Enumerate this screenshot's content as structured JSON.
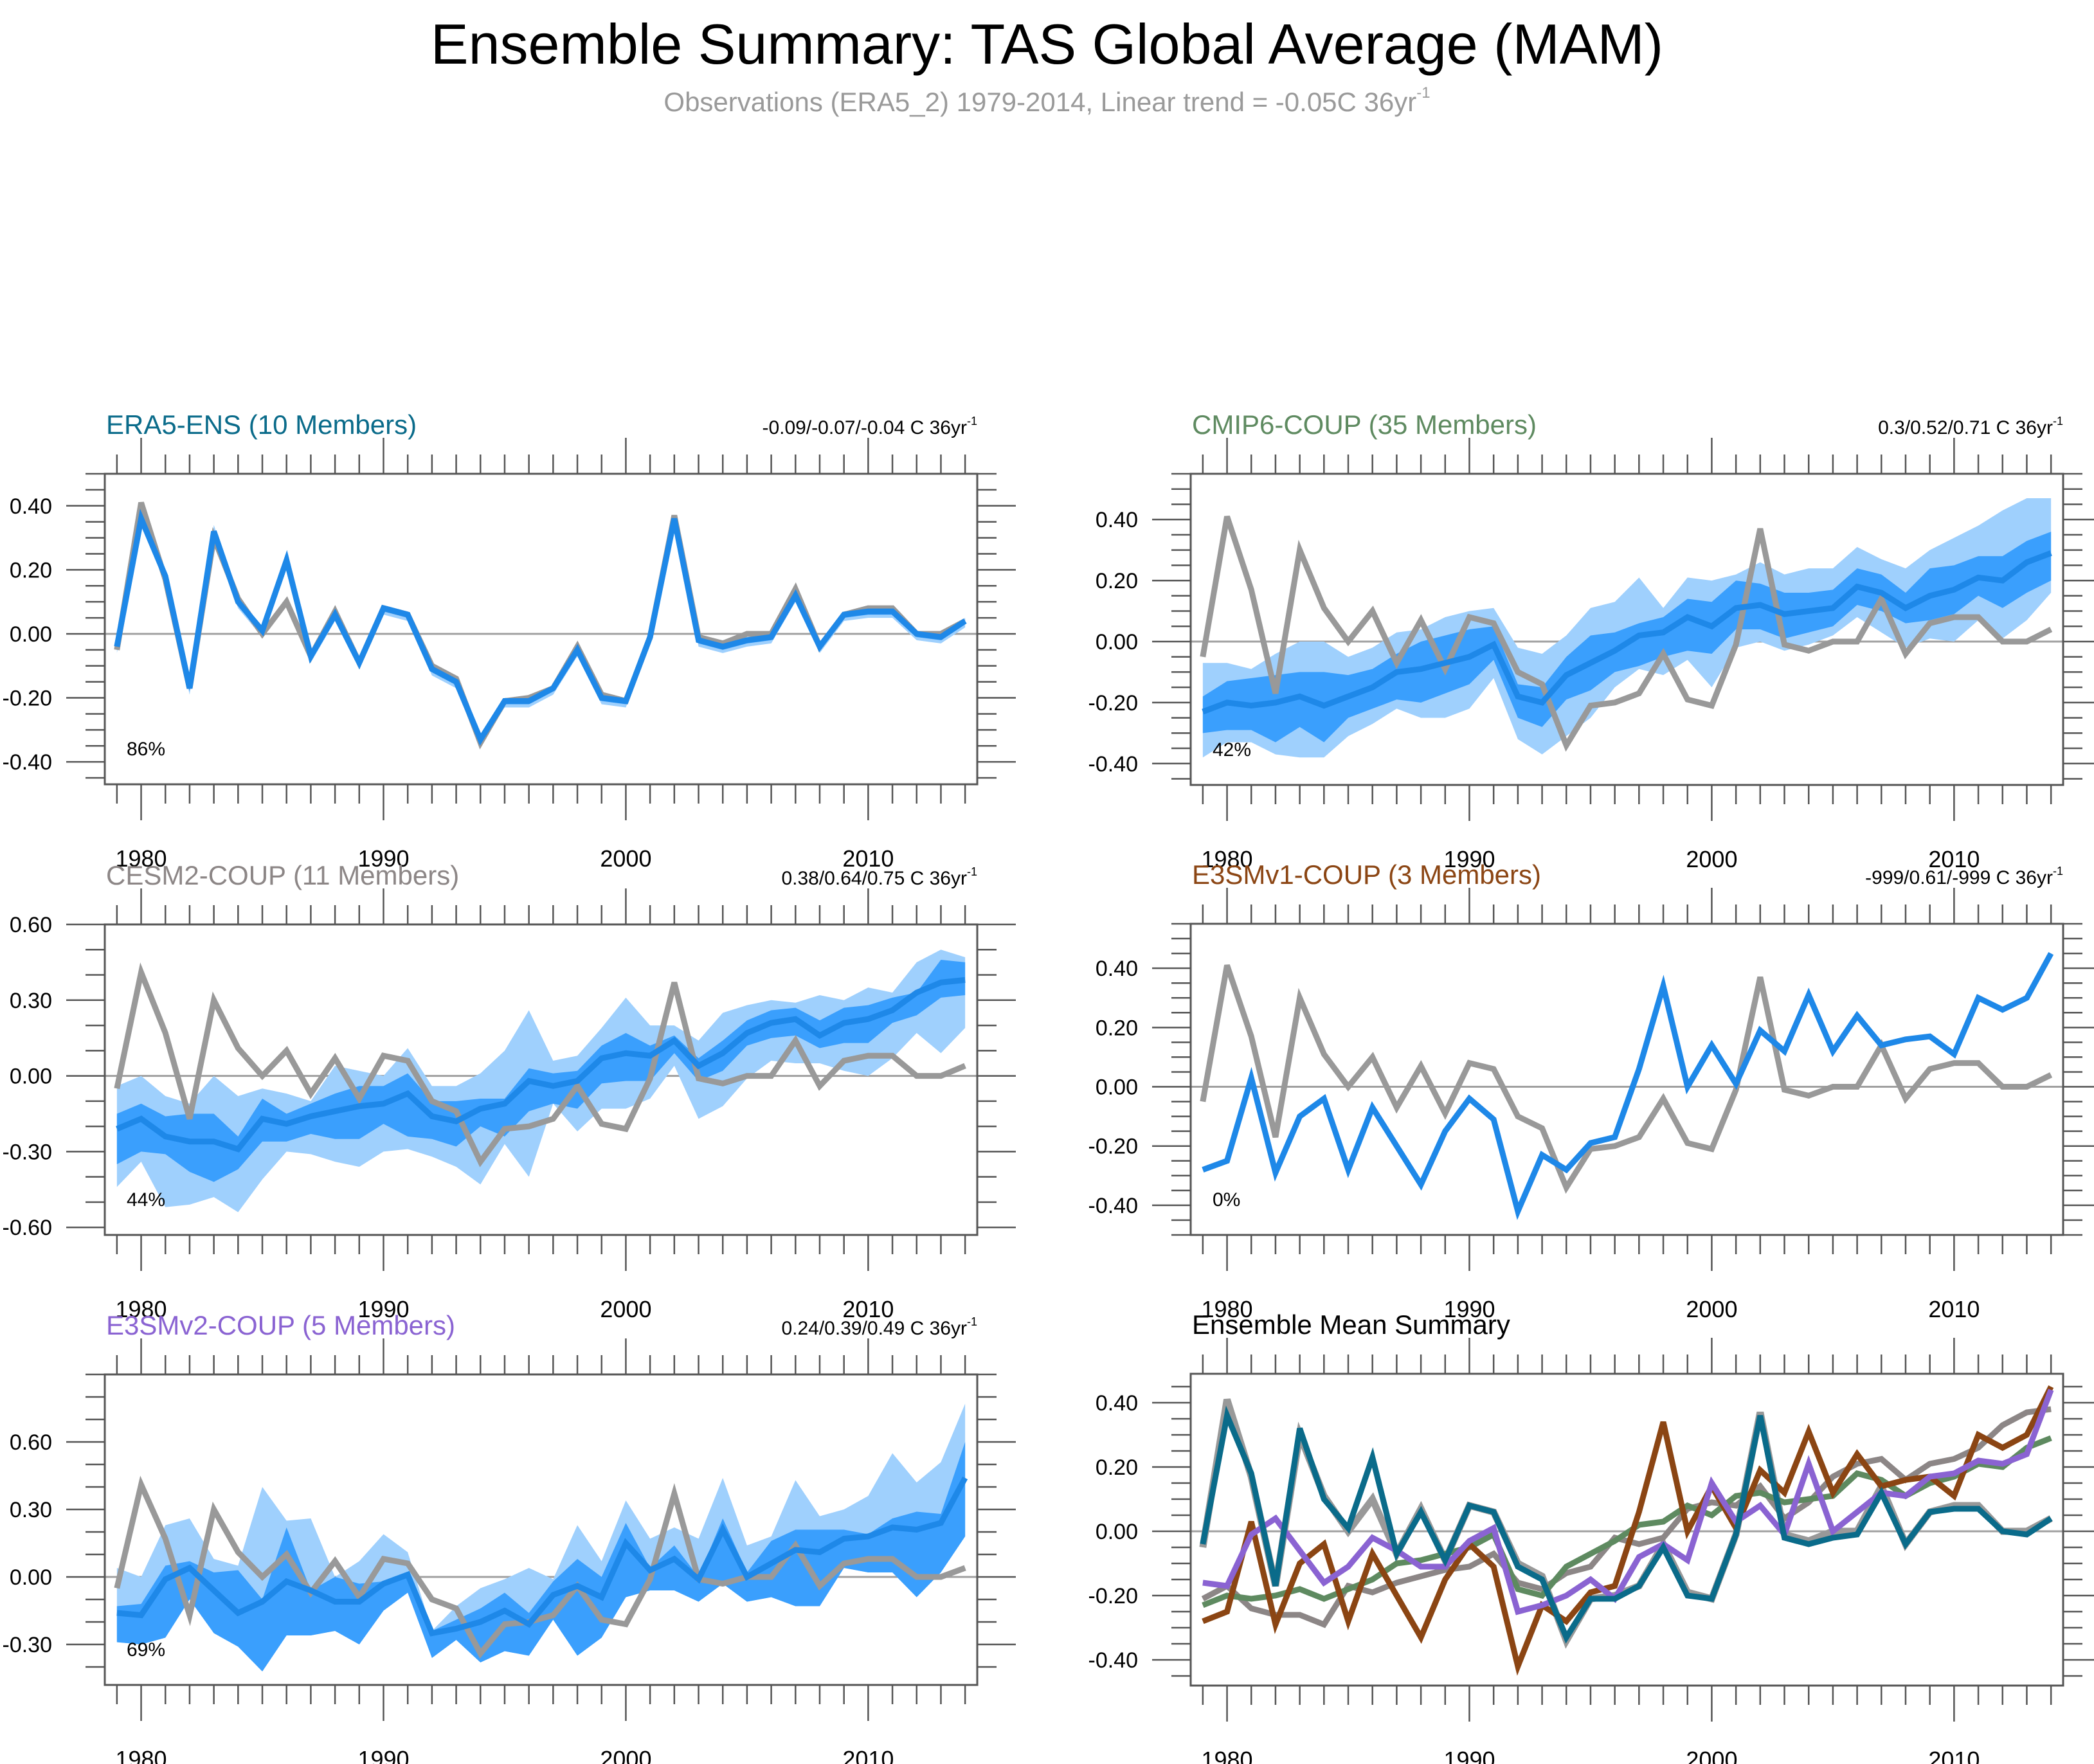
{
  "header": {
    "title": "Ensemble Summary: TAS Global Average (MAM)",
    "subtitle": "Observations (ERA5_2) 1979-2014, Linear trend = -0.05C 36yr",
    "subtitle_sup": "-1"
  },
  "colors": {
    "obs": "#999999",
    "mean_line": "#1e88e8",
    "band_light": "#9fd0fd",
    "band_dark": "#3a9ffd",
    "zero_line": "#a0a0a0",
    "axis": "#555555",
    "era5": "#0a6b8a",
    "cmip6": "#5e8a60",
    "cesm2": "#8c8686",
    "e3smv1": "#8b4513",
    "e3smv2": "#8a63d2"
  },
  "years": [
    1979,
    1980,
    1981,
    1982,
    1983,
    1984,
    1985,
    1986,
    1987,
    1988,
    1989,
    1990,
    1991,
    1992,
    1993,
    1994,
    1995,
    1996,
    1997,
    1998,
    1999,
    2000,
    2001,
    2002,
    2003,
    2004,
    2005,
    2006,
    2007,
    2008,
    2009,
    2010,
    2011,
    2012,
    2013,
    2014
  ],
  "observed": {
    "name": "Observations (ERA5_2)",
    "values": [
      -0.05,
      0.41,
      0.17,
      -0.17,
      0.3,
      0.11,
      0.0,
      0.1,
      -0.07,
      0.07,
      -0.09,
      0.08,
      0.06,
      -0.1,
      -0.14,
      -0.34,
      -0.21,
      -0.2,
      -0.17,
      -0.04,
      -0.19,
      -0.21,
      -0.01,
      0.37,
      -0.01,
      -0.03,
      0.0,
      0.0,
      0.14,
      -0.04,
      0.06,
      0.08,
      0.08,
      0.0,
      0.0,
      0.04
    ]
  },
  "chart_data": [
    {
      "type": "line",
      "id": "era5",
      "title": "ERA5-ENS (10 Members)",
      "title_color": "#0a6b8a",
      "trend": "-0.09/-0.07/-0.04 C 36yr",
      "trend_sup": "-1",
      "pct_label": "86%",
      "xlim": [
        1978.5,
        2014.5
      ],
      "xticks": [
        "1980",
        "1990",
        "2000",
        "2010"
      ],
      "xtick_values": [
        1980,
        1990,
        2000,
        2010
      ],
      "ylim": [
        -0.47,
        0.5
      ],
      "yticks": [
        "0.40",
        "0.20",
        "0.00",
        "-0.20",
        "-0.40"
      ],
      "ytick_values": [
        0.4,
        0.2,
        0.0,
        -0.2,
        -0.4
      ],
      "yminor_step": 0.05,
      "mean": [
        -0.04,
        0.36,
        0.18,
        -0.17,
        0.32,
        0.1,
        0.01,
        0.23,
        -0.07,
        0.06,
        -0.09,
        0.08,
        0.06,
        -0.11,
        -0.15,
        -0.33,
        -0.21,
        -0.21,
        -0.17,
        -0.05,
        -0.2,
        -0.21,
        -0.01,
        0.36,
        -0.02,
        -0.04,
        -0.02,
        -0.01,
        0.12,
        -0.04,
        0.06,
        0.07,
        0.07,
        0.0,
        -0.01,
        0.04
      ],
      "band_outer": {
        "lower": [
          -0.06,
          0.34,
          0.16,
          -0.19,
          0.3,
          0.08,
          -0.01,
          0.21,
          -0.09,
          0.04,
          -0.11,
          0.06,
          0.04,
          -0.13,
          -0.17,
          -0.35,
          -0.23,
          -0.23,
          -0.19,
          -0.07,
          -0.22,
          -0.23,
          -0.03,
          0.34,
          -0.04,
          -0.06,
          -0.04,
          -0.03,
          0.1,
          -0.06,
          0.04,
          0.05,
          0.05,
          -0.02,
          -0.03,
          0.02
        ],
        "upper": [
          -0.03,
          0.38,
          0.2,
          -0.16,
          0.34,
          0.11,
          0.02,
          0.24,
          -0.06,
          0.07,
          -0.08,
          0.09,
          0.07,
          -0.1,
          -0.14,
          -0.32,
          -0.2,
          -0.2,
          -0.16,
          -0.04,
          -0.19,
          -0.2,
          0.0,
          0.37,
          -0.01,
          -0.02,
          -0.01,
          0.0,
          0.13,
          -0.03,
          0.07,
          0.08,
          0.08,
          0.01,
          0.0,
          0.05
        ]
      },
      "band_inner": {
        "lower": [
          -0.05,
          0.35,
          0.17,
          -0.18,
          0.31,
          0.09,
          0.0,
          0.22,
          -0.08,
          0.05,
          -0.1,
          0.07,
          0.05,
          -0.12,
          -0.16,
          -0.34,
          -0.22,
          -0.22,
          -0.18,
          -0.06,
          -0.21,
          -0.22,
          -0.02,
          0.35,
          -0.03,
          -0.05,
          -0.03,
          -0.02,
          0.11,
          -0.05,
          0.05,
          0.06,
          0.06,
          -0.01,
          -0.02,
          0.03
        ],
        "upper": [
          -0.035,
          0.365,
          0.185,
          -0.165,
          0.325,
          0.105,
          0.015,
          0.235,
          -0.065,
          0.065,
          -0.085,
          0.085,
          0.065,
          -0.105,
          -0.145,
          -0.325,
          -0.205,
          -0.205,
          -0.165,
          -0.045,
          -0.195,
          -0.205,
          -0.005,
          0.365,
          -0.015,
          -0.035,
          -0.015,
          -0.005,
          0.125,
          -0.035,
          0.065,
          0.075,
          0.075,
          0.005,
          -0.005,
          0.045
        ]
      }
    },
    {
      "type": "line",
      "id": "cmip6",
      "title": "CMIP6-COUP (35 Members)",
      "title_color": "#5e8a60",
      "trend": "0.3/0.52/0.71 C 36yr",
      "trend_sup": "-1",
      "pct_label": "42%",
      "xlim": [
        1978.5,
        2014.5
      ],
      "xticks": [
        "1980",
        "1990",
        "2000",
        "2010"
      ],
      "xtick_values": [
        1980,
        1990,
        2000,
        2010
      ],
      "ylim": [
        -0.47,
        0.55
      ],
      "yticks": [
        "0.40",
        "0.20",
        "0.00",
        "-0.20",
        "-0.40"
      ],
      "ytick_values": [
        0.4,
        0.2,
        0.0,
        -0.2,
        -0.4
      ],
      "yminor_step": 0.05,
      "mean": [
        -0.23,
        -0.2,
        -0.21,
        -0.2,
        -0.18,
        -0.21,
        -0.18,
        -0.15,
        -0.1,
        -0.09,
        -0.07,
        -0.05,
        -0.01,
        -0.18,
        -0.2,
        -0.11,
        -0.07,
        -0.03,
        0.02,
        0.03,
        0.08,
        0.05,
        0.11,
        0.12,
        0.09,
        0.1,
        0.11,
        0.18,
        0.16,
        0.11,
        0.15,
        0.17,
        0.21,
        0.2,
        0.26,
        0.29
      ],
      "band_outer": {
        "lower": [
          -0.38,
          -0.33,
          -0.33,
          -0.37,
          -0.38,
          -0.38,
          -0.31,
          -0.27,
          -0.22,
          -0.25,
          -0.25,
          -0.22,
          -0.12,
          -0.32,
          -0.37,
          -0.31,
          -0.25,
          -0.15,
          -0.09,
          -0.11,
          -0.06,
          -0.15,
          -0.02,
          0.0,
          -0.03,
          -0.01,
          0.02,
          0.08,
          0.03,
          -0.02,
          0.01,
          0.0,
          0.07,
          0.01,
          0.07,
          0.16
        ],
        "upper": [
          -0.07,
          -0.07,
          -0.09,
          -0.04,
          0.0,
          0.0,
          -0.05,
          -0.02,
          0.03,
          0.04,
          0.08,
          0.1,
          0.11,
          -0.02,
          -0.04,
          0.02,
          0.11,
          0.13,
          0.21,
          0.11,
          0.21,
          0.2,
          0.22,
          0.26,
          0.22,
          0.24,
          0.24,
          0.31,
          0.27,
          0.24,
          0.3,
          0.34,
          0.38,
          0.43,
          0.47,
          0.47
        ]
      },
      "band_inner": {
        "lower": [
          -0.3,
          -0.29,
          -0.29,
          -0.33,
          -0.28,
          -0.33,
          -0.25,
          -0.22,
          -0.19,
          -0.2,
          -0.17,
          -0.14,
          -0.06,
          -0.25,
          -0.28,
          -0.19,
          -0.16,
          -0.1,
          -0.08,
          -0.05,
          -0.03,
          -0.04,
          0.04,
          0.04,
          0.01,
          0.03,
          0.05,
          0.12,
          0.1,
          0.06,
          0.07,
          0.09,
          0.15,
          0.11,
          0.16,
          0.2
        ],
        "upper": [
          -0.18,
          -0.13,
          -0.12,
          -0.11,
          -0.1,
          -0.1,
          -0.11,
          -0.09,
          -0.04,
          0.0,
          0.02,
          0.04,
          0.05,
          -0.14,
          -0.15,
          -0.05,
          0.02,
          0.03,
          0.06,
          0.08,
          0.14,
          0.13,
          0.2,
          0.19,
          0.16,
          0.16,
          0.17,
          0.24,
          0.22,
          0.16,
          0.24,
          0.25,
          0.28,
          0.28,
          0.33,
          0.36
        ]
      }
    },
    {
      "type": "line",
      "id": "cesm2",
      "title": "CESM2-COUP (11 Members)",
      "title_color": "#8c8686",
      "trend": "0.38/0.64/0.75 C 36yr",
      "trend_sup": "-1",
      "pct_label": "44%",
      "xlim": [
        1978.5,
        2014.5
      ],
      "xticks": [
        "1980",
        "1990",
        "2000",
        "2010"
      ],
      "xtick_values": [
        1980,
        1990,
        2000,
        2010
      ],
      "ylim": [
        -0.63,
        0.6
      ],
      "yticks": [
        "0.60",
        "0.30",
        "0.00",
        "-0.30",
        "-0.60"
      ],
      "ytick_values": [
        0.6,
        0.3,
        0.0,
        -0.3,
        -0.6
      ],
      "yminor_step": 0.1,
      "mean": [
        -0.21,
        -0.17,
        -0.24,
        -0.26,
        -0.26,
        -0.29,
        -0.17,
        -0.19,
        -0.16,
        -0.14,
        -0.12,
        -0.11,
        -0.07,
        -0.16,
        -0.18,
        -0.13,
        -0.11,
        -0.02,
        -0.04,
        -0.02,
        0.07,
        0.09,
        0.08,
        0.14,
        0.04,
        0.09,
        0.17,
        0.21,
        0.225,
        0.16,
        0.21,
        0.225,
        0.26,
        0.33,
        0.37,
        0.38
      ],
      "band_outer": {
        "lower": [
          -0.44,
          -0.34,
          -0.52,
          -0.51,
          -0.48,
          -0.54,
          -0.41,
          -0.3,
          -0.31,
          -0.34,
          -0.36,
          -0.3,
          -0.29,
          -0.32,
          -0.36,
          -0.43,
          -0.27,
          -0.4,
          -0.11,
          -0.22,
          -0.13,
          -0.13,
          -0.09,
          0.04,
          -0.17,
          -0.12,
          -0.01,
          0.06,
          0.05,
          0.05,
          0.02,
          0.0,
          0.07,
          0.17,
          0.09,
          0.19
        ],
        "upper": [
          -0.04,
          0.0,
          -0.08,
          -0.11,
          0.0,
          -0.08,
          -0.05,
          -0.07,
          -0.1,
          0.04,
          0.02,
          0.0,
          0.11,
          -0.04,
          -0.04,
          0.01,
          0.1,
          0.26,
          0.06,
          0.08,
          0.19,
          0.31,
          0.2,
          0.2,
          0.14,
          0.25,
          0.28,
          0.3,
          0.29,
          0.32,
          0.3,
          0.35,
          0.33,
          0.45,
          0.5,
          0.47
        ]
      },
      "band_inner": {
        "lower": [
          -0.35,
          -0.3,
          -0.31,
          -0.38,
          -0.42,
          -0.37,
          -0.26,
          -0.26,
          -0.23,
          -0.25,
          -0.25,
          -0.19,
          -0.24,
          -0.25,
          -0.28,
          -0.2,
          -0.24,
          -0.14,
          -0.11,
          -0.13,
          -0.03,
          -0.02,
          -0.02,
          0.09,
          -0.02,
          0.02,
          0.12,
          0.15,
          0.16,
          0.11,
          0.13,
          0.13,
          0.21,
          0.24,
          0.31,
          0.32
        ],
        "upper": [
          -0.15,
          -0.11,
          -0.16,
          -0.15,
          -0.15,
          -0.24,
          -0.09,
          -0.15,
          -0.11,
          -0.07,
          -0.04,
          -0.04,
          0.01,
          -0.1,
          -0.1,
          -0.09,
          -0.09,
          0.03,
          0.01,
          0.02,
          0.12,
          0.17,
          0.12,
          0.16,
          0.07,
          0.14,
          0.22,
          0.26,
          0.27,
          0.22,
          0.27,
          0.28,
          0.31,
          0.33,
          0.46,
          0.45
        ]
      }
    },
    {
      "type": "line",
      "id": "e3smv1",
      "title": "E3SMv1-COUP (3 Members)",
      "title_color": "#8b4513",
      "trend": "-999/0.61/-999 C 36yr",
      "trend_sup": "-1",
      "pct_label": "0%",
      "xlim": [
        1978.5,
        2014.5
      ],
      "xticks": [
        "1980",
        "1990",
        "2000",
        "2010"
      ],
      "xtick_values": [
        1980,
        1990,
        2000,
        2010
      ],
      "ylim": [
        -0.5,
        0.55
      ],
      "yticks": [
        "0.40",
        "0.20",
        "0.00",
        "-0.20",
        "-0.40"
      ],
      "ytick_values": [
        0.4,
        0.2,
        0.0,
        -0.2,
        -0.4
      ],
      "yminor_step": 0.05,
      "mean": [
        -0.28,
        -0.25,
        0.03,
        -0.29,
        -0.1,
        -0.04,
        -0.28,
        -0.07,
        -0.2,
        -0.33,
        -0.15,
        -0.04,
        -0.11,
        -0.42,
        -0.23,
        -0.28,
        -0.19,
        -0.17,
        0.06,
        0.34,
        0.0,
        0.14,
        0.01,
        0.19,
        0.12,
        0.31,
        0.12,
        0.24,
        0.14,
        0.16,
        0.17,
        0.11,
        0.3,
        0.26,
        0.3,
        0.45
      ]
    },
    {
      "type": "line",
      "id": "e3smv2",
      "title": "E3SMv2-COUP (5 Members)",
      "title_color": "#8a63d2",
      "trend": "0.24/0.39/0.49 C 36yr",
      "trend_sup": "-1",
      "pct_label": "69%",
      "xlim": [
        1978.5,
        2014.5
      ],
      "xticks": [
        "1980",
        "1990",
        "2000",
        "2010"
      ],
      "xtick_values": [
        1980,
        1990,
        2000,
        2010
      ],
      "ylim": [
        -0.48,
        0.9
      ],
      "yticks": [
        "0.60",
        "0.30",
        "0.00",
        "-0.30"
      ],
      "ytick_values": [
        0.6,
        0.3,
        0.0,
        -0.3
      ],
      "yminor_step": 0.1,
      "mean": [
        -0.16,
        -0.17,
        -0.01,
        0.04,
        -0.06,
        -0.16,
        -0.11,
        -0.02,
        -0.06,
        -0.11,
        -0.11,
        -0.03,
        0.01,
        -0.25,
        -0.23,
        -0.2,
        -0.15,
        -0.21,
        -0.08,
        -0.04,
        -0.09,
        0.15,
        0.03,
        0.08,
        -0.01,
        0.21,
        0.0,
        0.06,
        0.12,
        0.11,
        0.17,
        0.18,
        0.22,
        0.21,
        0.24,
        0.44
      ],
      "band_outer": {
        "lower": [
          -0.29,
          -0.3,
          -0.27,
          -0.1,
          -0.25,
          -0.31,
          -0.42,
          -0.26,
          -0.26,
          -0.24,
          -0.3,
          -0.15,
          -0.07,
          -0.36,
          -0.28,
          -0.38,
          -0.33,
          -0.35,
          -0.19,
          -0.35,
          -0.27,
          -0.09,
          -0.06,
          -0.06,
          -0.11,
          -0.03,
          -0.11,
          -0.09,
          -0.13,
          -0.13,
          0.04,
          0.02,
          0.02,
          -0.09,
          0.02,
          0.18
        ],
        "upper": [
          0.04,
          0.0,
          0.23,
          0.26,
          0.08,
          0.05,
          0.4,
          0.25,
          0.26,
          0.0,
          0.07,
          0.19,
          0.11,
          -0.24,
          -0.13,
          -0.05,
          -0.01,
          0.04,
          -0.01,
          0.23,
          0.07,
          0.34,
          0.17,
          0.22,
          0.17,
          0.44,
          0.14,
          0.18,
          0.43,
          0.27,
          0.3,
          0.36,
          0.55,
          0.42,
          0.51,
          0.77
        ]
      },
      "band_inner": {
        "lower": [
          -0.29,
          -0.3,
          -0.27,
          -0.1,
          -0.25,
          -0.31,
          -0.42,
          -0.26,
          -0.26,
          -0.24,
          -0.3,
          -0.15,
          -0.07,
          -0.36,
          -0.28,
          -0.38,
          -0.33,
          -0.35,
          -0.19,
          -0.35,
          -0.27,
          -0.09,
          -0.06,
          -0.06,
          -0.11,
          -0.03,
          -0.11,
          -0.09,
          -0.13,
          -0.13,
          0.04,
          0.02,
          0.02,
          -0.09,
          0.02,
          0.18
        ],
        "upper": [
          -0.13,
          -0.12,
          0.05,
          0.07,
          0.02,
          0.03,
          -0.1,
          0.22,
          -0.06,
          0.0,
          -0.03,
          -0.02,
          0.01,
          -0.24,
          -0.19,
          -0.14,
          -0.07,
          -0.16,
          -0.02,
          0.08,
          0.0,
          0.24,
          0.04,
          0.14,
          0.0,
          0.26,
          0.02,
          0.16,
          0.21,
          0.21,
          0.21,
          0.19,
          0.26,
          0.29,
          0.28,
          0.6
        ]
      }
    },
    {
      "type": "line",
      "id": "summary",
      "title": "Ensemble Mean Summary",
      "title_color": "#000000",
      "xlim": [
        1978.5,
        2014.5
      ],
      "xticks": [
        "1980",
        "1990",
        "2000",
        "2010"
      ],
      "xtick_values": [
        1980,
        1990,
        2000,
        2010
      ],
      "ylim": [
        -0.48,
        0.49
      ],
      "yticks": [
        "0.40",
        "0.20",
        "0.00",
        "-0.20",
        "-0.40"
      ],
      "ytick_values": [
        0.4,
        0.2,
        0.0,
        -0.2,
        -0.4
      ],
      "yminor_step": 0.05,
      "legend": "none",
      "series_refs": [
        {
          "name": "Observations",
          "ref": "observed",
          "color_key": "obs"
        },
        {
          "name": "CESM2-COUP",
          "ref": "cesm2",
          "color_key": "cesm2"
        },
        {
          "name": "CMIP6-COUP",
          "ref": "cmip6",
          "color_key": "cmip6"
        },
        {
          "name": "E3SMv1-COUP",
          "ref": "e3smv1",
          "color_key": "e3smv1"
        },
        {
          "name": "E3SMv2-COUP",
          "ref": "e3smv2",
          "color_key": "e3smv2"
        },
        {
          "name": "ERA5-ENS",
          "ref": "era5",
          "color_key": "era5"
        }
      ]
    }
  ]
}
